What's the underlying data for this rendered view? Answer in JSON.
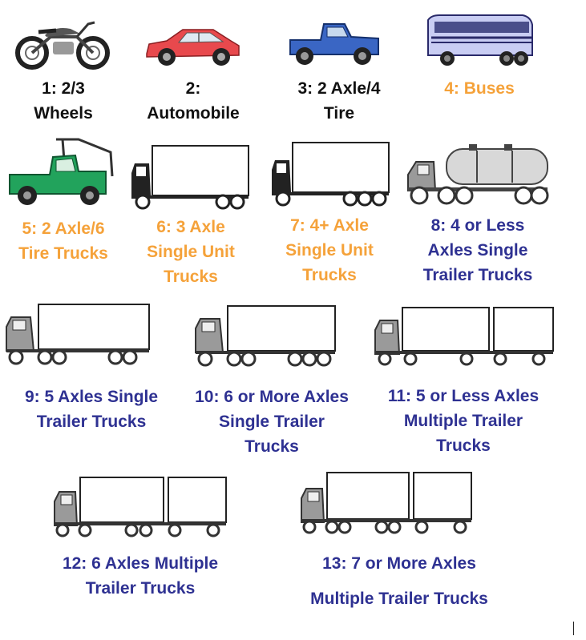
{
  "colors": {
    "black_label": "#111111",
    "orange_label": "#f5a23a",
    "blue_label": "#2e3192"
  },
  "classes": [
    {
      "id": "1",
      "lines": [
        "1: 2/3",
        "Wheels"
      ],
      "color": "black",
      "icon": "motorcycle-icon"
    },
    {
      "id": "2",
      "lines": [
        "2:",
        "Automobile"
      ],
      "color": "black",
      "icon": "automobile-icon"
    },
    {
      "id": "3",
      "lines": [
        "3: 2 Axle/4",
        "Tire"
      ],
      "color": "black",
      "icon": "pickup-truck-icon"
    },
    {
      "id": "4",
      "lines": [
        "4: Buses"
      ],
      "color": "orange",
      "icon": "bus-icon"
    },
    {
      "id": "5",
      "lines": [
        "5: 2 Axle/6",
        "Tire Trucks"
      ],
      "color": "orange",
      "icon": "tow-truck-icon"
    },
    {
      "id": "6",
      "lines": [
        "6: 3 Axle",
        "Single Unit",
        "Trucks"
      ],
      "color": "orange",
      "icon": "single-unit-truck-3axle-icon"
    },
    {
      "id": "7",
      "lines": [
        "7: 4+ Axle",
        "Single Unit",
        "Trucks"
      ],
      "color": "orange",
      "icon": "single-unit-truck-4axle-icon"
    },
    {
      "id": "8",
      "lines": [
        "8: 4 or Less",
        "Axles Single",
        "Trailer Trucks"
      ],
      "color": "blue",
      "icon": "tanker-truck-icon"
    },
    {
      "id": "9",
      "lines": [
        "9: 5 Axles Single",
        "Trailer Trucks"
      ],
      "color": "blue",
      "icon": "semi-trailer-5axle-icon"
    },
    {
      "id": "10",
      "lines": [
        "10: 6 or More Axles",
        "Single Trailer",
        "Trucks"
      ],
      "color": "blue",
      "icon": "semi-trailer-6axle-icon"
    },
    {
      "id": "11",
      "lines": [
        "11:  5 or Less Axles",
        "Multiple Trailer",
        "Trucks"
      ],
      "color": "blue",
      "icon": "double-trailer-5axle-icon"
    },
    {
      "id": "12",
      "lines": [
        "12: 6 Axles Multiple",
        "Trailer Trucks"
      ],
      "color": "blue",
      "icon": "double-trailer-6axle-icon"
    },
    {
      "id": "13",
      "lines": [
        "13: 7 or More Axles",
        "Multiple Trailer Trucks"
      ],
      "color": "blue",
      "icon": "double-trailer-7axle-icon"
    }
  ]
}
